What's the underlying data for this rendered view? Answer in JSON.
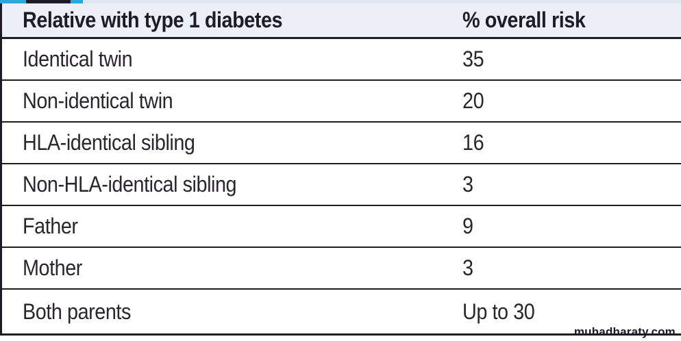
{
  "table": {
    "header": {
      "relative": "Relative with type 1 diabetes",
      "risk": "% overall risk"
    },
    "rows": [
      {
        "relative": "Identical twin",
        "risk": "35"
      },
      {
        "relative": "Non-identical twin",
        "risk": "20"
      },
      {
        "relative": "HLA-identical sibling",
        "risk": "16"
      },
      {
        "relative": "Non-HLA-identical sibling",
        "risk": "3"
      },
      {
        "relative": "Father",
        "risk": "9"
      },
      {
        "relative": "Mother",
        "risk": "3"
      },
      {
        "relative": "Both parents",
        "risk": "Up to 30"
      }
    ]
  },
  "watermark": {
    "text": "muhadharaty.com"
  },
  "colors": {
    "accent_cyan": "#2BA9D6",
    "accent_navy": "#1C1B29",
    "strip_light": "#DFE8F2",
    "header_bg": "#ECEFF6",
    "border": "#1C1C22",
    "body_text": "#29262E"
  }
}
